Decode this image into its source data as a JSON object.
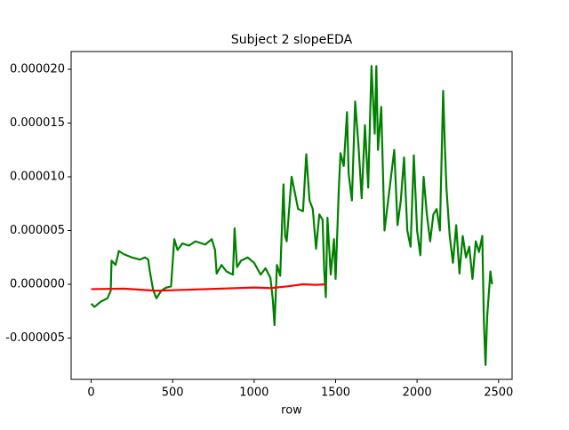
{
  "chart_data": {
    "type": "line",
    "title": "Subject 2 slopeEDA",
    "x_label": "row",
    "xlim": [
      -123,
      2583
    ],
    "ylim": [
      -8.84e-06,
      2.165e-05
    ],
    "xticks": [
      0,
      500,
      1000,
      1500,
      2000,
      2500
    ],
    "yticks": [
      {
        "value": -5e-06,
        "label": "-0.000005"
      },
      {
        "value": 0,
        "label": "0.000000"
      },
      {
        "value": 5e-06,
        "label": "0.000005"
      },
      {
        "value": 1e-05,
        "label": "0.000010"
      },
      {
        "value": 1.5e-05,
        "label": "0.000015"
      },
      {
        "value": 2e-05,
        "label": "0.000020"
      }
    ],
    "grid": false,
    "series": [
      {
        "color": "#008000",
        "x": [
          0,
          20,
          60,
          100,
          120,
          125,
          150,
          170,
          200,
          250,
          300,
          330,
          350,
          360,
          380,
          400,
          430,
          460,
          490,
          510,
          530,
          560,
          600,
          640,
          700,
          740,
          760,
          770,
          800,
          830,
          870,
          880,
          895,
          920,
          960,
          1000,
          1040,
          1070,
          1100,
          1115,
          1125,
          1140,
          1160,
          1180,
          1190,
          1200,
          1230,
          1250,
          1270,
          1300,
          1320,
          1340,
          1360,
          1380,
          1400,
          1420,
          1430,
          1440,
          1450,
          1470,
          1490,
          1500,
          1520,
          1530,
          1550,
          1570,
          1580,
          1600,
          1620,
          1640,
          1660,
          1680,
          1700,
          1720,
          1740,
          1750,
          1760,
          1780,
          1800,
          1820,
          1840,
          1860,
          1880,
          1900,
          1920,
          1940,
          1960,
          1980,
          2000,
          2020,
          2040,
          2060,
          2080,
          2100,
          2120,
          2140,
          2160,
          2170,
          2180,
          2200,
          2220,
          2240,
          2260,
          2280,
          2300,
          2320,
          2340,
          2360,
          2380,
          2400,
          2410,
          2420,
          2430,
          2450,
          2460
        ],
        "values": [
          -1.8e-06,
          -2.1e-06,
          -1.6e-06,
          -1.3e-06,
          -6e-07,
          2.2e-06,
          1.8e-06,
          3.1e-06,
          2.8e-06,
          2.5e-06,
          2.3e-06,
          2.5e-06,
          2.3e-06,
          1.2e-06,
          -5e-07,
          -1.3e-06,
          -6e-07,
          -3e-07,
          -2e-07,
          4.2e-06,
          3.2e-06,
          3.8e-06,
          3.6e-06,
          4e-06,
          3.7e-06,
          4.2e-06,
          3.2e-06,
          1e-06,
          1.8e-06,
          1.2e-06,
          9e-07,
          5.2e-06,
          1.6e-06,
          2.2e-06,
          2.5e-06,
          2e-06,
          9e-07,
          1.5e-06,
          6e-07,
          -1.5e-06,
          -3.8e-06,
          1.8e-06,
          8e-07,
          9.3e-06,
          4.5e-06,
          4e-06,
          1e-05,
          8.5e-06,
          7e-06,
          6.8e-06,
          1.21e-05,
          7.8e-06,
          7e-06,
          3.3e-06,
          6.5e-06,
          6e-06,
          1.3e-06,
          -1.2e-06,
          6.2e-06,
          9e-07,
          4.2e-06,
          5e-07,
          9e-06,
          1.22e-05,
          1.1e-05,
          1.6e-05,
          1.03e-05,
          7.8e-06,
          1.7e-05,
          1.3e-05,
          8e-06,
          1.48e-05,
          9e-06,
          2.03e-05,
          1.4e-05,
          2.03e-05,
          1.25e-05,
          1.65e-05,
          5e-06,
          7.5e-06,
          1e-05,
          1.25e-05,
          5.5e-06,
          7.8e-06,
          1.18e-05,
          5e-06,
          3.5e-06,
          1.2e-05,
          5e-06,
          2.7e-06,
          1e-05,
          6.5e-06,
          4e-06,
          6.5e-06,
          7e-06,
          5e-06,
          1.8e-05,
          1.3e-05,
          9e-06,
          4.5e-06,
          2e-06,
          5.5e-06,
          1e-06,
          4.5e-06,
          2.5e-06,
          3.5e-06,
          5e-07,
          4e-06,
          3e-06,
          4.5e-06,
          -3.5e-06,
          -7.5e-06,
          -3e-06,
          1.2e-06,
          0.0
        ]
      },
      {
        "color": "#ff0000",
        "x": [
          0,
          200,
          400,
          600,
          800,
          1000,
          1100,
          1200,
          1300,
          1380,
          1440
        ],
        "values": [
          -4.5e-07,
          -4e-07,
          -6e-07,
          -5e-07,
          -4e-07,
          -3e-07,
          -3.5e-07,
          -2e-07,
          0.0,
          -5e-08,
          0.0
        ]
      }
    ]
  }
}
